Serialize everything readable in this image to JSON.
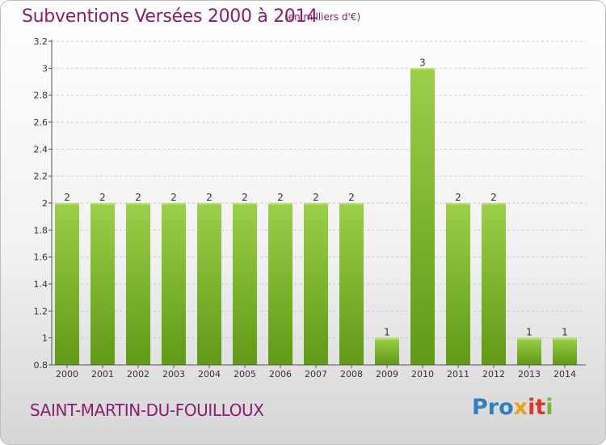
{
  "header": {
    "title": "Subventions Versées 2000 à 2014",
    "unit_note": "(en milliers d'€)"
  },
  "footer": {
    "commune": "SAINT-MARTIN-DU-FOUILLOUX",
    "logo_text": "Proxiti",
    "logo_parts": [
      "Pro",
      "x",
      "it",
      "i"
    ]
  },
  "colors": {
    "title": "#8c1c6e",
    "bar_light": "#9ccf4a",
    "bar_dark": "#5f9a14",
    "axis": "#555555",
    "grid": "#cccccc"
  },
  "chart_data": {
    "type": "bar",
    "categories": [
      "2000",
      "2001",
      "2002",
      "2003",
      "2004",
      "2005",
      "2006",
      "2007",
      "2008",
      "2009",
      "2010",
      "2011",
      "2012",
      "2013",
      "2014"
    ],
    "values": [
      2,
      2,
      2,
      2,
      2,
      2,
      2,
      2,
      2,
      1,
      3,
      2,
      2,
      1,
      1
    ],
    "data_labels": [
      "2",
      "2",
      "2",
      "2",
      "2",
      "2",
      "2",
      "2",
      "2",
      "1",
      "3",
      "2",
      "2",
      "1",
      "1"
    ],
    "ylim": [
      0.8,
      3.2
    ],
    "yticks": [
      0.8,
      1,
      1.2,
      1.4,
      1.6,
      1.8,
      2,
      2.2,
      2.4,
      2.6,
      2.8,
      3,
      3.2
    ],
    "ytick_labels": [
      "0.8",
      "1",
      "1.2",
      "1.4",
      "1.6",
      "1.8",
      "2",
      "2.2",
      "2.4",
      "2.6",
      "2.8",
      "3",
      "3.2"
    ],
    "grid": "horizontal dashed",
    "legend": "none"
  }
}
